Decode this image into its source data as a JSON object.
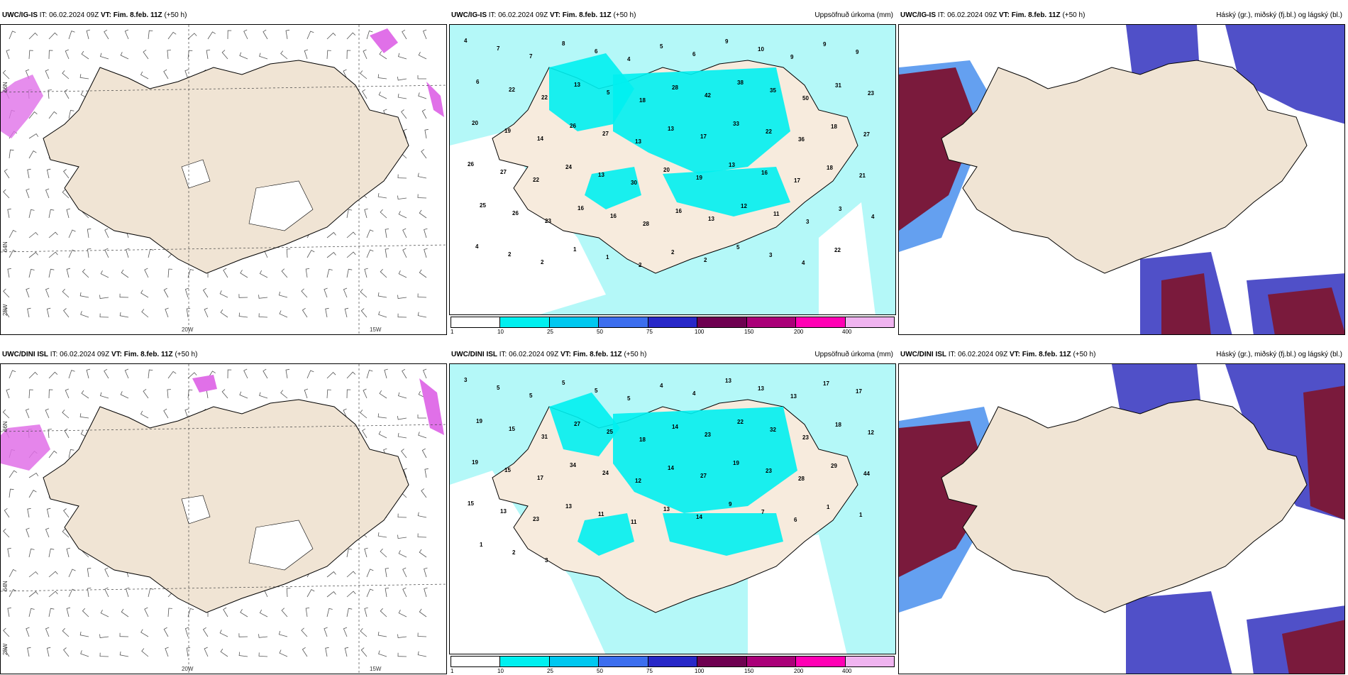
{
  "panels": [
    {
      "model": "UWC/IG-IS",
      "it": "IT: 06.02.2024 09Z",
      "vt": "VT: Fim. 8.feb. 11Z",
      "lead": "(+50 h)",
      "right": "",
      "type": "wind"
    },
    {
      "model": "UWC/IG-IS",
      "it": "IT: 06.02.2024 09Z",
      "vt": "VT: Fim. 8.feb. 11Z",
      "lead": "(+50 h)",
      "right": "Uppsöfnuð úrkoma (mm)",
      "type": "precip"
    },
    {
      "model": "UWC/IG-IS",
      "it": "IT: 06.02.2024 09Z",
      "vt": "VT: Fim. 8.feb. 11Z",
      "lead": "(+50 h)",
      "right": "Háský (gr.), miðský (fj.bl.) og lágský (bl.)",
      "type": "cloud"
    },
    {
      "model": "UWC/DINI ISL",
      "it": "IT: 06.02.2024 09Z",
      "vt": "VT: Fim. 8.feb. 11Z",
      "lead": "(+50 h)",
      "right": "",
      "type": "wind"
    },
    {
      "model": "UWC/DINI ISL",
      "it": "IT: 06.02.2024 09Z",
      "vt": "VT: Fim. 8.feb. 11Z",
      "lead": "(+50 h)",
      "right": "Uppsöfnuð úrkoma (mm)",
      "type": "precip"
    },
    {
      "model": "UWC/DINI ISL",
      "it": "IT: 06.02.2024 09Z",
      "vt": "VT: Fim. 8.feb. 11Z",
      "lead": "(+50 h)",
      "right": "Háský (gr.), miðský (fj.bl.) og lágský (bl.)",
      "type": "cloud"
    }
  ],
  "axis": {
    "lon_20": "20W",
    "lon_15": "15W",
    "lat_66": "66N",
    "lat_64": "64N",
    "lon_25": "25W"
  },
  "legend": {
    "ticks": [
      "1",
      "10",
      "25",
      "50",
      "75",
      "100",
      "150",
      "200",
      "400"
    ],
    "colors": [
      "#ffffff",
      "#00f0f0",
      "#00c8f0",
      "#3c6eee",
      "#2828c8",
      "#6e0050",
      "#aa0078",
      "#ff00b4",
      "#f0b4f0"
    ]
  },
  "precip_numbers_top": [
    "4",
    "7",
    "7",
    "8",
    "6",
    "4",
    "5",
    "6",
    "9",
    "10",
    "9",
    "9",
    "9",
    "6",
    "22",
    "22",
    "13",
    "5",
    "18",
    "28",
    "42",
    "38",
    "35",
    "50",
    "31",
    "23",
    "20",
    "19",
    "14",
    "26",
    "27",
    "13",
    "13",
    "17",
    "33",
    "22",
    "36",
    "18",
    "27",
    "26",
    "27",
    "22",
    "24",
    "13",
    "30",
    "20",
    "19",
    "13",
    "16",
    "17",
    "18",
    "21",
    "25",
    "26",
    "23",
    "16",
    "16",
    "28",
    "16",
    "13",
    "12",
    "11",
    "3",
    "3",
    "4",
    "4",
    "2",
    "2",
    "1",
    "1",
    "2",
    "2",
    "2",
    "5",
    "3",
    "4",
    "22"
  ],
  "precip_numbers_bot": [
    "3",
    "5",
    "5",
    "5",
    "5",
    "5",
    "4",
    "4",
    "13",
    "13",
    "13",
    "17",
    "17",
    "19",
    "15",
    "31",
    "27",
    "25",
    "18",
    "14",
    "23",
    "22",
    "32",
    "23",
    "18",
    "12",
    "19",
    "15",
    "17",
    "34",
    "24",
    "12",
    "14",
    "27",
    "19",
    "23",
    "28",
    "29",
    "44",
    "15",
    "13",
    "23",
    "13",
    "11",
    "11",
    "13",
    "14",
    "9",
    "7",
    "6",
    "1",
    "1",
    "1",
    "2",
    "3"
  ],
  "colors": {
    "land": "#f0e4d4",
    "sea": "#ffffff",
    "precip_light": "#b4f8f8",
    "precip_mid": "#00f0f0",
    "cloud_high": "#7a1a3c",
    "cloud_mid": "#5050c8",
    "cloud_low": "#64a0f0",
    "snow": "#e070e8"
  }
}
